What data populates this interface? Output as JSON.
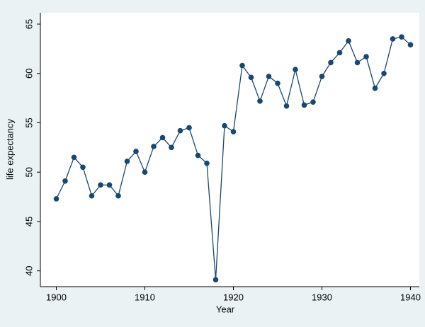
{
  "chart_data": {
    "type": "line",
    "x_label": "Year",
    "y_label": "life expectancy",
    "x": [
      1900,
      1901,
      1902,
      1903,
      1904,
      1905,
      1906,
      1907,
      1908,
      1909,
      1910,
      1911,
      1912,
      1913,
      1914,
      1915,
      1916,
      1917,
      1918,
      1919,
      1920,
      1921,
      1922,
      1923,
      1924,
      1925,
      1926,
      1927,
      1928,
      1929,
      1930,
      1931,
      1932,
      1933,
      1934,
      1935,
      1936,
      1937,
      1938,
      1939,
      1940
    ],
    "series": [
      {
        "name": "life expectancy",
        "color": "#1a476f",
        "values": [
          47.3,
          49.1,
          51.5,
          50.5,
          47.6,
          48.7,
          48.7,
          47.6,
          51.1,
          52.1,
          50.0,
          52.6,
          53.5,
          52.5,
          54.2,
          54.5,
          51.7,
          50.9,
          39.1,
          54.7,
          54.1,
          60.8,
          59.6,
          57.2,
          59.7,
          59.0,
          56.7,
          60.4,
          56.8,
          57.1,
          59.7,
          61.1,
          62.1,
          63.3,
          61.1,
          61.7,
          58.5,
          60.0,
          63.5,
          63.7,
          62.9
        ]
      }
    ],
    "xlim": [
      1898.2,
      1941
    ],
    "xticks": [
      1900,
      1910,
      1920,
      1930,
      1940
    ],
    "ylim": [
      38.4,
      66.15
    ],
    "yticks": [
      40,
      45,
      50,
      55,
      60,
      65
    ]
  }
}
